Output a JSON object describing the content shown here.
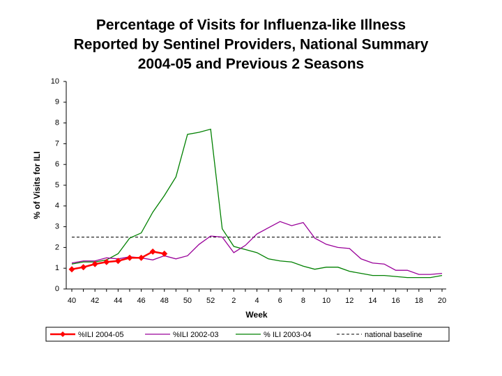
{
  "chart_data": {
    "type": "line",
    "title": [
      "Percentage of Visits for Influenza-like Illness",
      "Reported by Sentinel Providers, National Summary",
      "2004-05 and Previous 2 Seasons"
    ],
    "x_label": "Week",
    "y_label": "% of Visits for ILI",
    "categories": [
      40,
      null,
      42,
      null,
      44,
      null,
      46,
      null,
      48,
      null,
      50,
      null,
      52,
      null,
      2,
      null,
      4,
      null,
      6,
      null,
      8,
      null,
      10,
      null,
      12,
      null,
      14,
      null,
      16,
      null,
      18,
      null,
      20
    ],
    "series": [
      {
        "name": "%ILI 2004-05",
        "color": "#ff0000",
        "markers": true,
        "values": [
          0.95,
          1.05,
          1.2,
          1.3,
          1.35,
          1.5,
          1.5,
          1.8,
          1.7,
          null,
          null,
          null,
          null,
          null,
          null,
          null,
          null,
          null,
          null,
          null,
          null,
          null,
          null,
          null,
          null,
          null,
          null,
          null,
          null,
          null,
          null,
          null,
          null
        ]
      },
      {
        "name": "%ILI 2002-03",
        "color": "#990099",
        "markers": false,
        "values": [
          1.25,
          1.35,
          1.35,
          1.5,
          1.45,
          1.55,
          1.5,
          1.4,
          1.6,
          1.45,
          1.6,
          2.15,
          2.55,
          2.5,
          1.75,
          2.1,
          2.65,
          2.95,
          3.25,
          3.05,
          3.2,
          2.45,
          2.15,
          2.0,
          1.95,
          1.45,
          1.25,
          1.2,
          0.9,
          0.9,
          0.7,
          0.7,
          0.75
        ]
      },
      {
        "name": "% ILI 2003-04",
        "color": "#008000",
        "markers": false,
        "values": [
          1.2,
          1.3,
          1.3,
          1.4,
          1.7,
          2.45,
          2.7,
          3.7,
          4.5,
          5.4,
          7.45,
          7.55,
          7.7,
          2.9,
          2.05,
          1.9,
          1.75,
          1.45,
          1.35,
          1.3,
          1.1,
          0.95,
          1.05,
          1.05,
          0.85,
          0.75,
          0.65,
          0.65,
          0.6,
          0.55,
          0.55,
          0.55,
          0.65
        ]
      }
    ],
    "baseline": {
      "name": "national baseline",
      "value": 2.5,
      "color": "#000000"
    },
    "ylim": [
      0,
      10
    ],
    "yticks": [
      0,
      1,
      2,
      3,
      4,
      5,
      6,
      7,
      8,
      9,
      10
    ],
    "grid": false
  }
}
